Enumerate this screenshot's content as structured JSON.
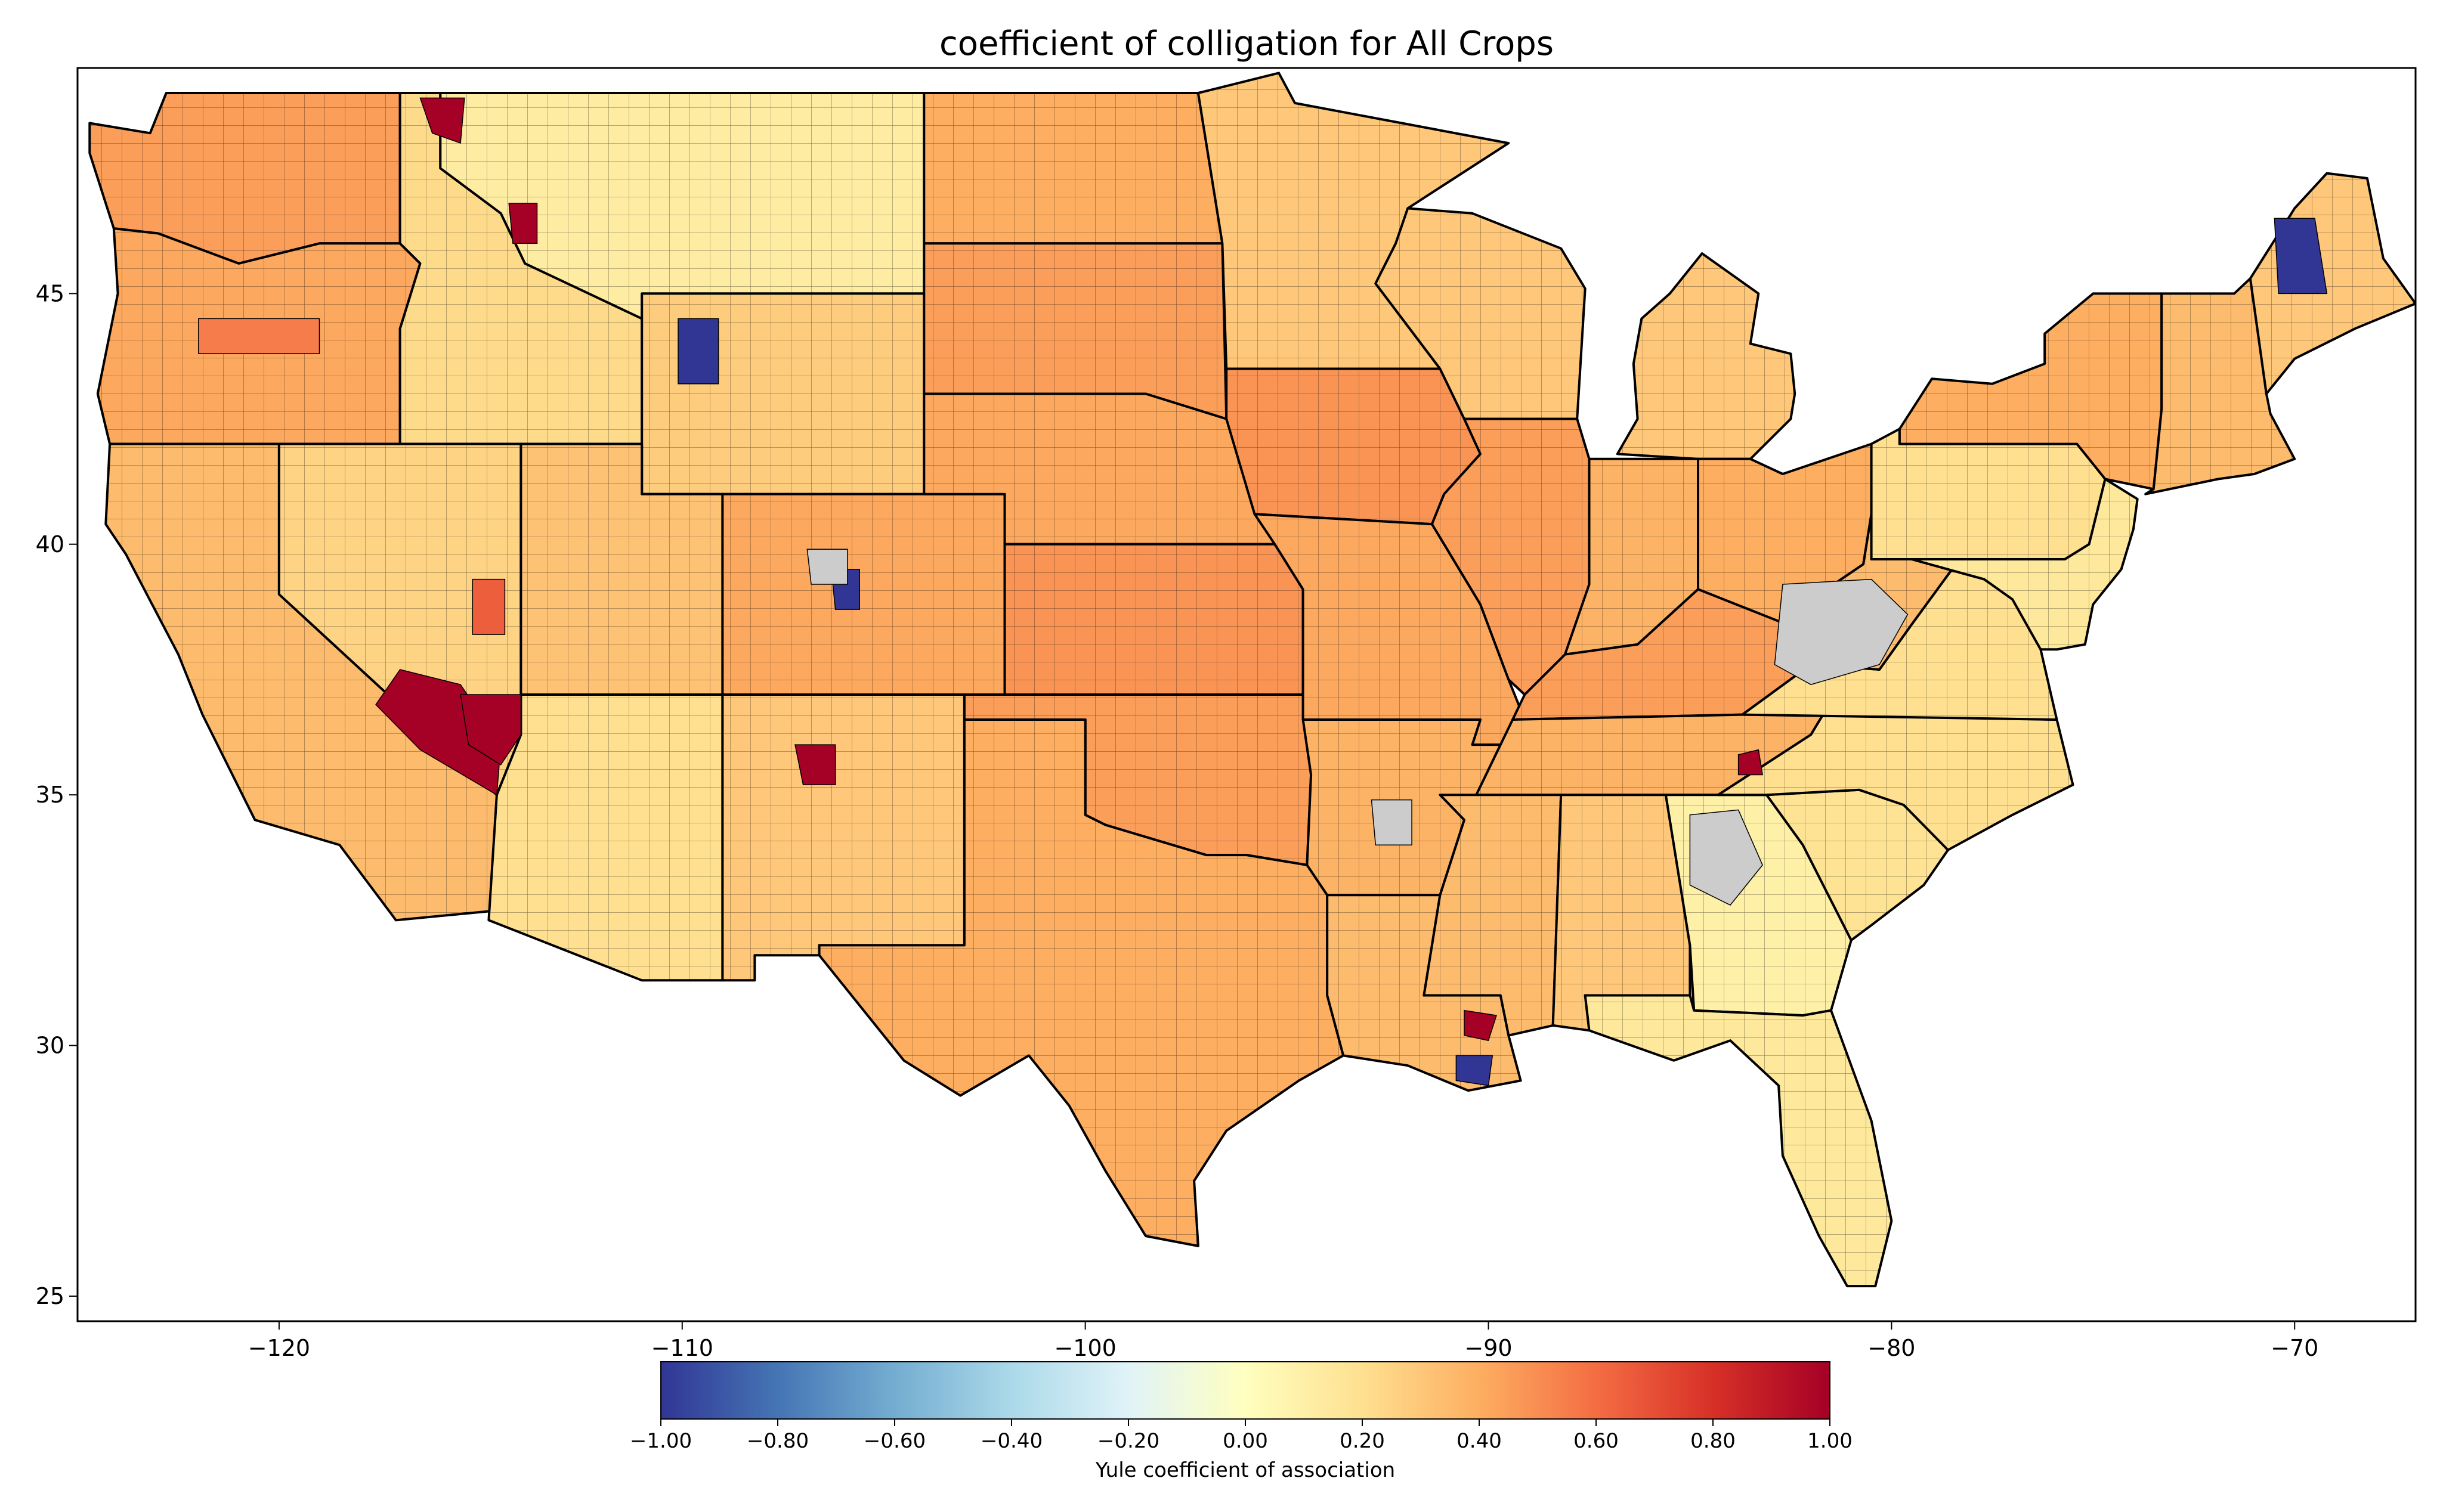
{
  "title": "coefficient of colligation for All Crops",
  "map": {
    "lon_range": [
      -125,
      -67
    ],
    "lat_range": [
      24.5,
      49.5
    ],
    "x_ticks": [
      {
        "value": -120,
        "label": "−120"
      },
      {
        "value": -110,
        "label": "−110"
      },
      {
        "value": -100,
        "label": "−100"
      },
      {
        "value": -90,
        "label": "−90"
      },
      {
        "value": -80,
        "label": "−80"
      },
      {
        "value": -70,
        "label": "−70"
      }
    ],
    "y_ticks": [
      {
        "value": 25,
        "label": "25"
      },
      {
        "value": 30,
        "label": "30"
      },
      {
        "value": 35,
        "label": "35"
      },
      {
        "value": 40,
        "label": "40"
      },
      {
        "value": 45,
        "label": "45"
      }
    ],
    "missing_color": "#cccccc",
    "colormap": "RdYlBu_r"
  },
  "colorbar": {
    "label": "Yule coefficient of association",
    "range": [
      -1.0,
      1.0
    ],
    "ticks": [
      {
        "value": -1.0,
        "label": "−1.00"
      },
      {
        "value": -0.8,
        "label": "−0.80"
      },
      {
        "value": -0.6,
        "label": "−0.60"
      },
      {
        "value": -0.4,
        "label": "−0.40"
      },
      {
        "value": -0.2,
        "label": "−0.20"
      },
      {
        "value": 0.0,
        "label": "0.00"
      },
      {
        "value": 0.2,
        "label": "0.20"
      },
      {
        "value": 0.4,
        "label": "0.40"
      },
      {
        "value": 0.6,
        "label": "0.60"
      },
      {
        "value": 0.8,
        "label": "0.80"
      },
      {
        "value": 1.0,
        "label": "1.00"
      }
    ],
    "stops": [
      "#313695",
      "#4575b4",
      "#74add1",
      "#abd9e9",
      "#e0f3f8",
      "#ffffbf",
      "#fee090",
      "#fdae61",
      "#f46d43",
      "#d73027",
      "#a50026"
    ]
  },
  "regions": [
    {
      "name": "washington",
      "value": 0.45
    },
    {
      "name": "oregon",
      "value": 0.42
    },
    {
      "name": "california",
      "value": 0.35
    },
    {
      "name": "idaho",
      "value": 0.22
    },
    {
      "name": "nevada",
      "value": 0.25
    },
    {
      "name": "montana",
      "value": 0.12
    },
    {
      "name": "wyoming",
      "value": 0.28
    },
    {
      "name": "utah",
      "value": 0.32
    },
    {
      "name": "arizona",
      "value": 0.2
    },
    {
      "name": "colorado",
      "value": 0.42
    },
    {
      "name": "new-mexico",
      "value": 0.3
    },
    {
      "name": "north-dakota",
      "value": 0.4
    },
    {
      "name": "south-dakota",
      "value": 0.45
    },
    {
      "name": "nebraska",
      "value": 0.42
    },
    {
      "name": "kansas",
      "value": 0.48
    },
    {
      "name": "oklahoma",
      "value": 0.45
    },
    {
      "name": "texas",
      "value": 0.4
    },
    {
      "name": "minnesota",
      "value": 0.3
    },
    {
      "name": "iowa",
      "value": 0.48
    },
    {
      "name": "missouri",
      "value": 0.42
    },
    {
      "name": "arkansas",
      "value": 0.38
    },
    {
      "name": "louisiana",
      "value": 0.35
    },
    {
      "name": "wisconsin",
      "value": 0.3
    },
    {
      "name": "illinois",
      "value": 0.45
    },
    {
      "name": "michigan",
      "value": 0.3
    },
    {
      "name": "indiana",
      "value": 0.38
    },
    {
      "name": "ohio",
      "value": 0.4
    },
    {
      "name": "kentucky",
      "value": 0.45
    },
    {
      "name": "tennessee",
      "value": 0.38
    },
    {
      "name": "mississippi",
      "value": 0.35
    },
    {
      "name": "alabama",
      "value": 0.3
    },
    {
      "name": "georgia",
      "value": 0.1
    },
    {
      "name": "florida",
      "value": 0.15
    },
    {
      "name": "south-carolina",
      "value": 0.18
    },
    {
      "name": "north-carolina",
      "value": 0.2
    },
    {
      "name": "virginia",
      "value": 0.2
    },
    {
      "name": "west-virginia",
      "value": 0.35
    },
    {
      "name": "pennsylvania",
      "value": 0.2
    },
    {
      "name": "new-york",
      "value": 0.4
    },
    {
      "name": "new-england",
      "value": 0.35
    },
    {
      "name": "maine",
      "value": 0.3
    },
    {
      "name": "mid-atlantic",
      "value": 0.15
    }
  ],
  "hotspots": [
    {
      "name": "red-patch-nevada",
      "value": 1.0
    },
    {
      "name": "red-patch-nevada-east",
      "value": 1.0
    },
    {
      "name": "red-patch-new-mexico",
      "value": 1.0
    },
    {
      "name": "red-patch-idaho-north",
      "value": 1.0
    },
    {
      "name": "red-patch-montana-west",
      "value": 1.0
    },
    {
      "name": "red-patch-louisiana",
      "value": 1.0
    },
    {
      "name": "red-patch-tennessee",
      "value": 1.0
    },
    {
      "name": "blue-patch-wyoming",
      "value": -1.0
    },
    {
      "name": "blue-patch-colorado",
      "value": -1.0
    },
    {
      "name": "blue-patch-maine",
      "value": -1.0
    },
    {
      "name": "blue-patch-louisiana",
      "value": -1.0
    },
    {
      "name": "grey-patch-appalachia",
      "value": null
    },
    {
      "name": "grey-patch-georgia",
      "value": null
    },
    {
      "name": "grey-patch-colorado",
      "value": null
    },
    {
      "name": "grey-patch-arkansas",
      "value": null
    },
    {
      "name": "orange-patch-nevada-central",
      "value": 0.65
    },
    {
      "name": "orange-patch-oregon",
      "value": 0.55
    }
  ]
}
